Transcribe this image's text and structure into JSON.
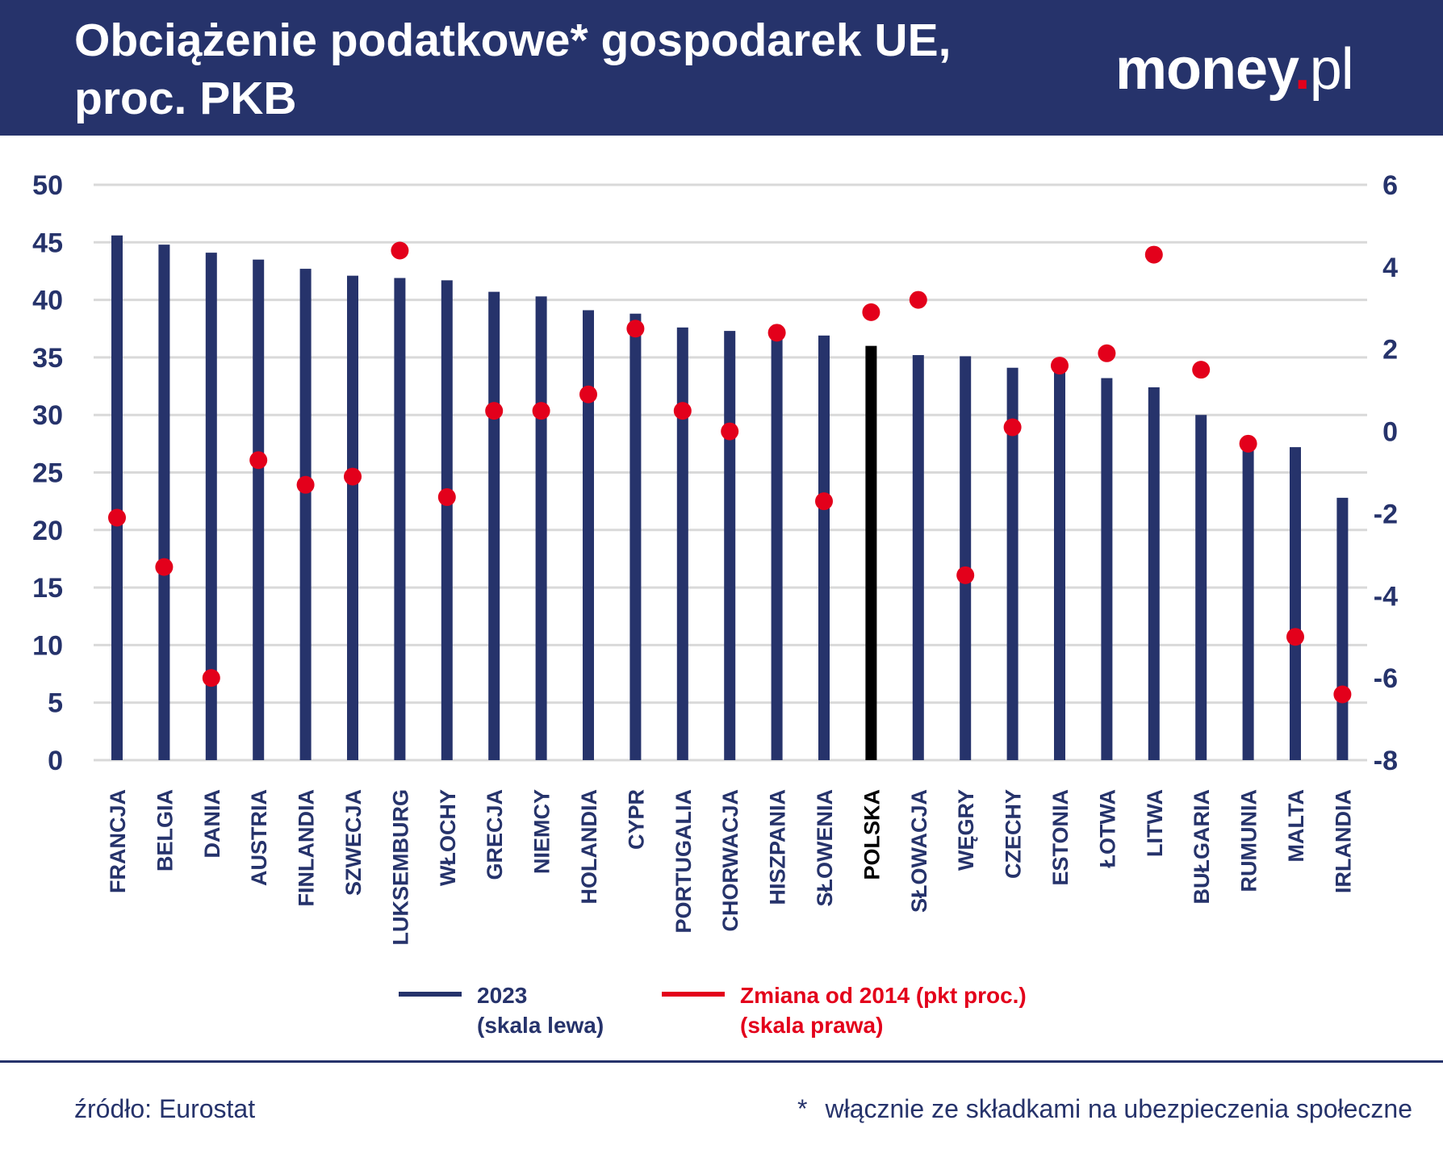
{
  "header": {
    "title_line1": "Obciążenie podatkowe* gospodarek UE,",
    "title_line2": "proc. PKB",
    "logo_main": "money",
    "logo_dot": ".",
    "logo_tld": "pl"
  },
  "colors": {
    "navy": "#26336b",
    "red": "#e3001b",
    "highlight": "#000000",
    "grid": "#d9d9d9"
  },
  "chart_data": {
    "type": "bar",
    "title": "Obciążenie podatkowe* gospodarek UE, proc. PKB",
    "categories": [
      "FRANCJA",
      "BELGIA",
      "DANIA",
      "AUSTRIA",
      "FINLANDIA",
      "SZWECJA",
      "LUKSEMBURG",
      "WŁOCHY",
      "GRECJA",
      "NIEMCY",
      "HOLANDIA",
      "CYPR",
      "PORTUGALIA",
      "CHORWACJA",
      "HISZPANIA",
      "SŁOWENIA",
      "POLSKA",
      "SŁOWACJA",
      "WĘGRY",
      "CZECHY",
      "ESTONIA",
      "ŁOTWA",
      "LITWA",
      "BUŁGARIA",
      "RUMUNIA",
      "MALTA",
      "IRLANDIA"
    ],
    "highlight_category": "POLSKA",
    "series": [
      {
        "name": "2023 (skala lewa)",
        "legend_line1": "2023",
        "legend_line2": "(skala lewa)",
        "axis": "left",
        "kind": "bar",
        "values": [
          45.6,
          44.8,
          44.1,
          43.5,
          42.7,
          42.1,
          41.9,
          41.7,
          40.7,
          40.3,
          39.1,
          38.8,
          37.6,
          37.3,
          37.3,
          36.9,
          36.0,
          35.2,
          35.1,
          34.1,
          34.0,
          33.2,
          32.4,
          30.0,
          28.0,
          27.2,
          22.8
        ]
      },
      {
        "name": "Zmiana od 2014 (pkt proc.) (skala prawa)",
        "legend_line1": "Zmiana od 2014 (pkt proc.)",
        "legend_line2": "(skala prawa)",
        "axis": "right",
        "kind": "scatter",
        "values": [
          -2.1,
          -3.3,
          -6.0,
          -0.7,
          -1.3,
          -1.1,
          4.4,
          -1.6,
          0.5,
          0.5,
          0.9,
          2.5,
          0.5,
          0.0,
          2.4,
          -1.7,
          2.9,
          3.2,
          -3.5,
          0.1,
          1.6,
          1.9,
          4.3,
          1.5,
          -0.3,
          -5.0,
          -6.4
        ]
      }
    ],
    "y_left": {
      "min": 0,
      "max": 50,
      "ticks": [
        0,
        5,
        10,
        15,
        20,
        25,
        30,
        35,
        40,
        45,
        50
      ]
    },
    "y_right": {
      "min": -8,
      "max": 6,
      "ticks": [
        -8,
        -6,
        -4,
        -2,
        0,
        2,
        4,
        6
      ]
    },
    "grid": true,
    "legend_position": "bottom"
  },
  "footer": {
    "source": "źródło: Eurostat",
    "note_star": "*",
    "note": "włącznie ze składkami na ubezpieczenia społeczne"
  }
}
